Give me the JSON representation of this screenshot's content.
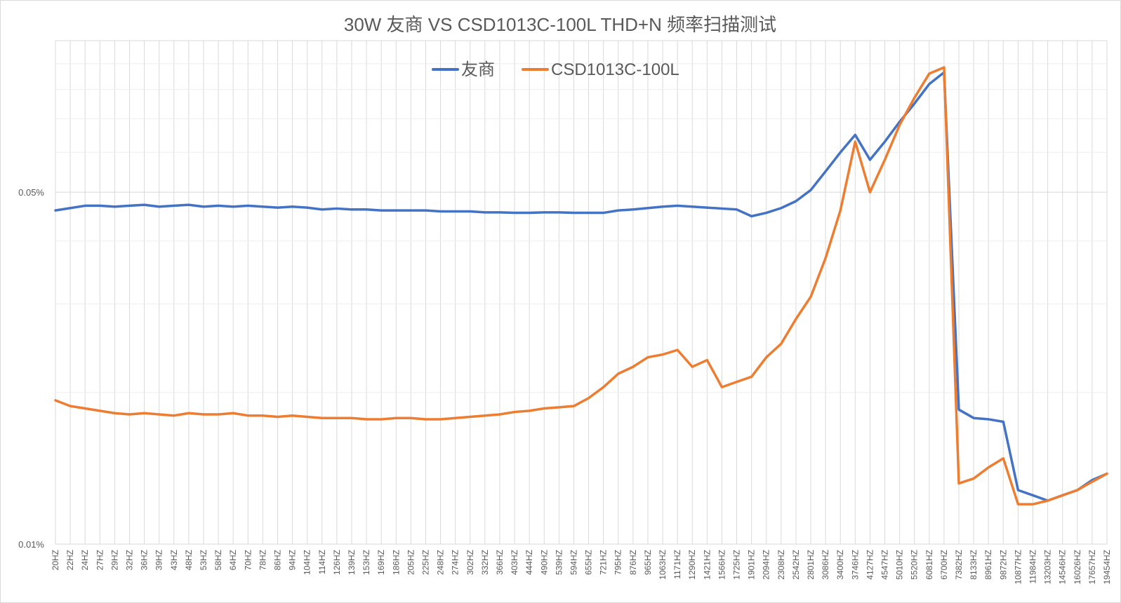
{
  "chart_data": {
    "type": "line",
    "title": "30W 友商 VS CSD1013C-100L THD+N 频率扫描测试",
    "xlabel": "",
    "ylabel": "",
    "y_scale": "log",
    "ylim": [
      0.01,
      0.1
    ],
    "y_tick_labels": [
      "0.05%",
      "0.01%"
    ],
    "grid": true,
    "legend_position": "top-center",
    "categories": [
      "20HZ",
      "22HZ",
      "24HZ",
      "27HZ",
      "29HZ",
      "32HZ",
      "36HZ",
      "39HZ",
      "43HZ",
      "48HZ",
      "53HZ",
      "58HZ",
      "64HZ",
      "70HZ",
      "78HZ",
      "86HZ",
      "94HZ",
      "104HZ",
      "114HZ",
      "126HZ",
      "139HZ",
      "153HZ",
      "169HZ",
      "186HZ",
      "205HZ",
      "225HZ",
      "248HZ",
      "274HZ",
      "302HZ",
      "332HZ",
      "366HZ",
      "403HZ",
      "444HZ",
      "490HZ",
      "539HZ",
      "594HZ",
      "655HZ",
      "721HZ",
      "795HZ",
      "876HZ",
      "965HZ",
      "1063HZ",
      "1171HZ",
      "1290HZ",
      "1421HZ",
      "1566HZ",
      "1725HZ",
      "1901HZ",
      "2094HZ",
      "2308HZ",
      "2542HZ",
      "2801HZ",
      "3086HZ",
      "3400HZ",
      "3746HZ",
      "4127HZ",
      "4547HZ",
      "5010HZ",
      "5520HZ",
      "6081HZ",
      "6700HZ",
      "7382HZ",
      "8133HZ",
      "8961HZ",
      "9872HZ",
      "10877HZ",
      "11984HZ",
      "13203HZ",
      "14546HZ",
      "16026HZ",
      "17657HZ",
      "19454HZ"
    ],
    "series": [
      {
        "name": "友商",
        "color": "#4472C4",
        "values": [
          0.046,
          0.0465,
          0.047,
          0.047,
          0.0468,
          0.047,
          0.0472,
          0.0468,
          0.047,
          0.0472,
          0.0468,
          0.047,
          0.0468,
          0.047,
          0.0468,
          0.0466,
          0.0468,
          0.0466,
          0.0462,
          0.0464,
          0.0462,
          0.0462,
          0.046,
          0.046,
          0.046,
          0.046,
          0.0458,
          0.0458,
          0.0458,
          0.0456,
          0.0456,
          0.0455,
          0.0455,
          0.0456,
          0.0456,
          0.0455,
          0.0455,
          0.0455,
          0.046,
          0.0462,
          0.0465,
          0.0468,
          0.047,
          0.0468,
          0.0466,
          0.0464,
          0.0462,
          0.0448,
          0.0455,
          0.0465,
          0.048,
          0.0505,
          0.055,
          0.06,
          0.065,
          0.058,
          0.063,
          0.069,
          0.075,
          0.082,
          0.0865,
          0.0185,
          0.0178,
          0.0177,
          0.0175,
          0.0128,
          0.0125,
          0.0122,
          0.0125,
          0.0128,
          0.0134,
          0.0138
        ]
      },
      {
        "name": "CSD1013C-100L",
        "color": "#ED7D31",
        "values": [
          0.0193,
          0.0188,
          0.0186,
          0.0184,
          0.0182,
          0.0181,
          0.0182,
          0.0181,
          0.018,
          0.0182,
          0.0181,
          0.0181,
          0.0182,
          0.018,
          0.018,
          0.0179,
          0.018,
          0.0179,
          0.0178,
          0.0178,
          0.0178,
          0.0177,
          0.0177,
          0.0178,
          0.0178,
          0.0177,
          0.0177,
          0.0178,
          0.0179,
          0.018,
          0.0181,
          0.0183,
          0.0184,
          0.0186,
          0.0187,
          0.0188,
          0.0195,
          0.0205,
          0.0218,
          0.0225,
          0.0235,
          0.0238,
          0.0243,
          0.0225,
          0.0232,
          0.0205,
          0.021,
          0.0215,
          0.0235,
          0.025,
          0.028,
          0.031,
          0.037,
          0.046,
          0.063,
          0.05,
          0.058,
          0.068,
          0.077,
          0.086,
          0.0885,
          0.0132,
          0.0135,
          0.0142,
          0.0148,
          0.012,
          0.012,
          0.0122,
          0.0125,
          0.0128,
          0.0133,
          0.0138
        ]
      }
    ]
  }
}
